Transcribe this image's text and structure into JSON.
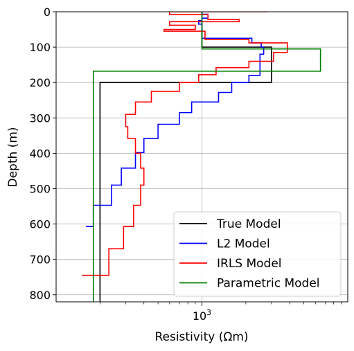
{
  "chart_data": {
    "type": "line",
    "xlabel": "Resistivity (Ωm)",
    "ylabel": "Depth (m)",
    "x_scale": "log",
    "x_range": [
      100,
      10000
    ],
    "y_range": [
      0,
      820
    ],
    "y_inverted": true,
    "grid": true,
    "legend_position": "bottom-right",
    "x_ticks": [
      {
        "value": 1000,
        "base": "10",
        "exp": "3"
      }
    ],
    "y_ticks": [
      {
        "value": 0,
        "label": "0"
      },
      {
        "value": 100,
        "label": "100"
      },
      {
        "value": 200,
        "label": "200"
      },
      {
        "value": 300,
        "label": "300"
      },
      {
        "value": 400,
        "label": "400"
      },
      {
        "value": 500,
        "label": "500"
      },
      {
        "value": 600,
        "label": "600"
      },
      {
        "value": 700,
        "label": "700"
      },
      {
        "value": 800,
        "label": "800"
      }
    ],
    "series": [
      {
        "name": "True Model",
        "color": "#000000",
        "points": [
          [
            1000,
            0
          ],
          [
            1000,
            100
          ],
          [
            3000,
            100
          ],
          [
            3000,
            200
          ],
          [
            200,
            200
          ],
          [
            200,
            820
          ]
        ]
      },
      {
        "name": "L2 Model",
        "color": "#0000ff",
        "points": [
          [
            1000,
            0
          ],
          [
            1000,
            7
          ],
          [
            1100,
            7
          ],
          [
            1100,
            18
          ],
          [
            1000,
            18
          ],
          [
            1000,
            25
          ],
          [
            950,
            25
          ],
          [
            950,
            35
          ],
          [
            1000,
            35
          ],
          [
            1000,
            55
          ],
          [
            1000,
            65
          ],
          [
            1000,
            70
          ],
          [
            1000,
            75
          ],
          [
            2200,
            75
          ],
          [
            2200,
            88
          ],
          [
            2550,
            88
          ],
          [
            2550,
            100
          ],
          [
            2650,
            100
          ],
          [
            2650,
            120
          ],
          [
            2500,
            120
          ],
          [
            2500,
            180
          ],
          [
            2100,
            180
          ],
          [
            2100,
            200
          ],
          [
            1600,
            200
          ],
          [
            1600,
            228
          ],
          [
            1300,
            228
          ],
          [
            1300,
            255
          ],
          [
            850,
            255
          ],
          [
            850,
            285
          ],
          [
            700,
            285
          ],
          [
            700,
            318
          ],
          [
            500,
            318
          ],
          [
            500,
            358
          ],
          [
            400,
            358
          ],
          [
            400,
            398
          ],
          [
            350,
            398
          ],
          [
            350,
            442
          ],
          [
            280,
            442
          ],
          [
            280,
            490
          ],
          [
            240,
            490
          ],
          [
            240,
            547
          ],
          [
            180,
            547
          ],
          [
            180,
            607
          ],
          [
            160,
            607
          ]
        ]
      },
      {
        "name": "IRLS Model",
        "color": "#ff0000",
        "points": [
          [
            2800,
            0
          ],
          [
            600,
            0
          ],
          [
            600,
            8
          ],
          [
            1100,
            8
          ],
          [
            1100,
            22
          ],
          [
            1800,
            22
          ],
          [
            1800,
            28
          ],
          [
            600,
            28
          ],
          [
            600,
            38
          ],
          [
            900,
            38
          ],
          [
            900,
            50
          ],
          [
            550,
            50
          ],
          [
            550,
            55
          ],
          [
            1050,
            55
          ],
          [
            1050,
            78
          ],
          [
            2100,
            78
          ],
          [
            2100,
            88
          ],
          [
            3850,
            88
          ],
          [
            3850,
            115
          ],
          [
            3100,
            115
          ],
          [
            3100,
            140
          ],
          [
            2100,
            140
          ],
          [
            2100,
            158
          ],
          [
            1250,
            158
          ],
          [
            1250,
            178
          ],
          [
            950,
            178
          ],
          [
            950,
            200
          ],
          [
            700,
            200
          ],
          [
            700,
            225
          ],
          [
            450,
            225
          ],
          [
            450,
            255
          ],
          [
            350,
            255
          ],
          [
            350,
            290
          ],
          [
            300,
            290
          ],
          [
            300,
            325
          ],
          [
            310,
            325
          ],
          [
            310,
            358
          ],
          [
            350,
            358
          ],
          [
            350,
            400
          ],
          [
            380,
            400
          ],
          [
            380,
            442
          ],
          [
            400,
            442
          ],
          [
            400,
            490
          ],
          [
            380,
            490
          ],
          [
            380,
            547
          ],
          [
            340,
            547
          ],
          [
            340,
            607
          ],
          [
            290,
            607
          ],
          [
            290,
            670
          ],
          [
            230,
            670
          ],
          [
            230,
            745
          ],
          [
            150,
            745
          ]
        ]
      },
      {
        "name": "Parametric Model",
        "color": "#008000",
        "points": [
          [
            1000,
            0
          ],
          [
            1000,
            105
          ],
          [
            6500,
            105
          ],
          [
            6500,
            168
          ],
          [
            180,
            168
          ],
          [
            180,
            820
          ]
        ]
      }
    ]
  }
}
